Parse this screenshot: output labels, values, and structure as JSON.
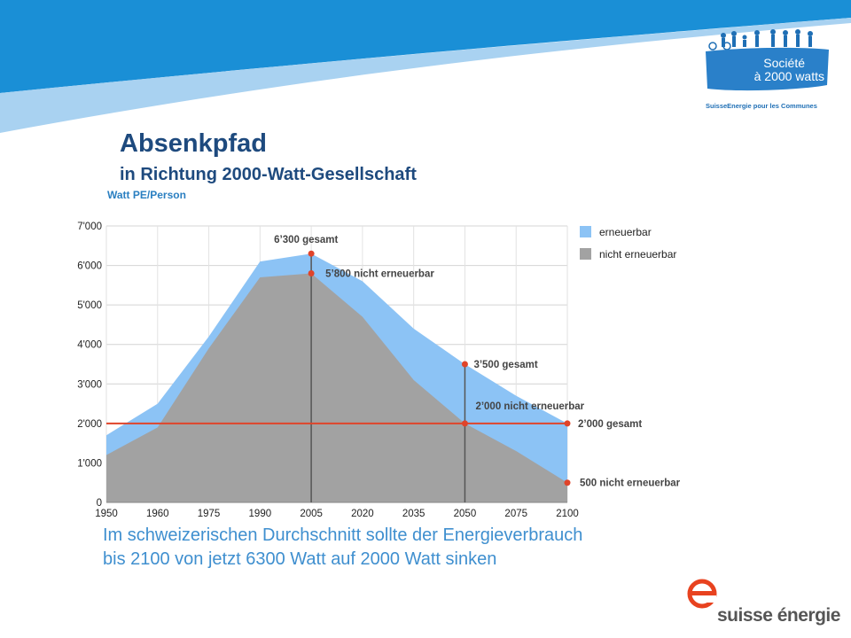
{
  "slide": {
    "title": "Absenkpfad",
    "subtitle": "in Richtung 2000-Watt-Gesellschaft",
    "caption_line1": "Im schweizerischen Durchschnitt sollte der Energieverbrauch",
    "caption_line2": "bis 2100 von jetzt 6300 Watt auf 2000 Watt sinken",
    "logo_top_line1": "Société",
    "logo_top_line2": "à 2000 watts",
    "logo_top_tagline": "SuisseEnergie pour les Communes",
    "logo_bottom": "suisse énergie",
    "colors": {
      "title": "#1e4a7e",
      "renewable": "#8cc3f5",
      "non_renewable": "#a2a2a2",
      "target_line": "#e0442a",
      "banner": "#1a8fd6",
      "caption": "#3f8fcf"
    }
  },
  "chart_data": {
    "type": "area",
    "ylabel": "Watt PE/Person",
    "ylim": [
      0,
      7000
    ],
    "yticks": [
      0,
      1000,
      2000,
      3000,
      4000,
      5000,
      6000,
      7000
    ],
    "ytick_labels": [
      "0",
      "1'000",
      "2'000",
      "3'000",
      "4'000",
      "5'000",
      "6'000",
      "7'000"
    ],
    "x": [
      1950,
      1960,
      1975,
      1990,
      2005,
      2020,
      2035,
      2050,
      2075,
      2100
    ],
    "xtick_labels": [
      "1950",
      "1960",
      "1975",
      "1990",
      "2005",
      "2020",
      "2035",
      "2050",
      "2075",
      "2100"
    ],
    "grid": true,
    "series": [
      {
        "name": "erneuerbar",
        "values": [
          1700,
          2500,
          4200,
          6100,
          6300,
          5600,
          4400,
          3500,
          2700,
          2000
        ]
      },
      {
        "name": "nicht erneuerbar",
        "values": [
          1200,
          1900,
          3900,
          5700,
          5800,
          4700,
          3100,
          2000,
          1300,
          500
        ]
      }
    ],
    "legend": [
      "erneuerbar",
      "nicht erneuerbar"
    ],
    "legend_position": "top-right",
    "target_line_value": 2000,
    "annotations": [
      {
        "x": 2005,
        "y": 6300,
        "text": "6’300 gesamt"
      },
      {
        "x": 2005,
        "y": 5800,
        "text": "5’800 nicht erneuerbar"
      },
      {
        "x": 2050,
        "y": 3500,
        "text": "3’500 gesamt"
      },
      {
        "x": 2050,
        "y": 2000,
        "text": "2’000 nicht erneuerbar"
      },
      {
        "x": 2100,
        "y": 2000,
        "text": "2’000 gesamt"
      },
      {
        "x": 2100,
        "y": 500,
        "text": "500 nicht erneuerbar"
      }
    ]
  }
}
